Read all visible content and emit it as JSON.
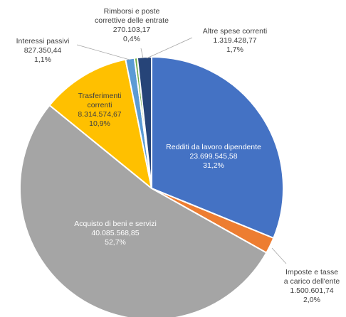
{
  "chart_data": {
    "type": "pie",
    "title": "",
    "slices": [
      {
        "label_lines": [
          "Redditi da lavoro dipendente"
        ],
        "value_text": "23.699.545,58",
        "pct_text": "31,2%",
        "value": 23699545.58,
        "percent": 31.2,
        "color": "#4472C4"
      },
      {
        "label_lines": [
          "Imposte e tasse",
          "a carico dell'ente"
        ],
        "value_text": "1.500.601,74",
        "pct_text": "2,0%",
        "value": 1500601.74,
        "percent": 2.0,
        "color": "#ED7D31"
      },
      {
        "label_lines": [
          "Acquisto di beni e servizi"
        ],
        "value_text": "40.085.568,85",
        "pct_text": "52,7%",
        "value": 40085568.85,
        "percent": 52.7,
        "color": "#A5A5A5"
      },
      {
        "label_lines": [
          "Trasferimenti",
          "correnti"
        ],
        "value_text": "8.314.574,67",
        "pct_text": "10,9%",
        "value": 8314574.67,
        "percent": 10.9,
        "color": "#FFC000"
      },
      {
        "label_lines": [
          "Interessi passivi"
        ],
        "value_text": "827.350,44",
        "pct_text": "1,1%",
        "value": 827350.44,
        "percent": 1.1,
        "color": "#5B9BD5"
      },
      {
        "label_lines": [
          "Rimborsi e poste",
          "correttive delle entrate"
        ],
        "value_text": "270.103,17",
        "pct_text": "0,4%",
        "value": 270103.17,
        "percent": 0.4,
        "color": "#70AD47"
      },
      {
        "label_lines": [
          "Altre spese correnti"
        ],
        "value_text": "1.319.428,77",
        "pct_text": "1,7%",
        "value": 1319428.77,
        "percent": 1.7,
        "color": "#264478"
      }
    ]
  }
}
